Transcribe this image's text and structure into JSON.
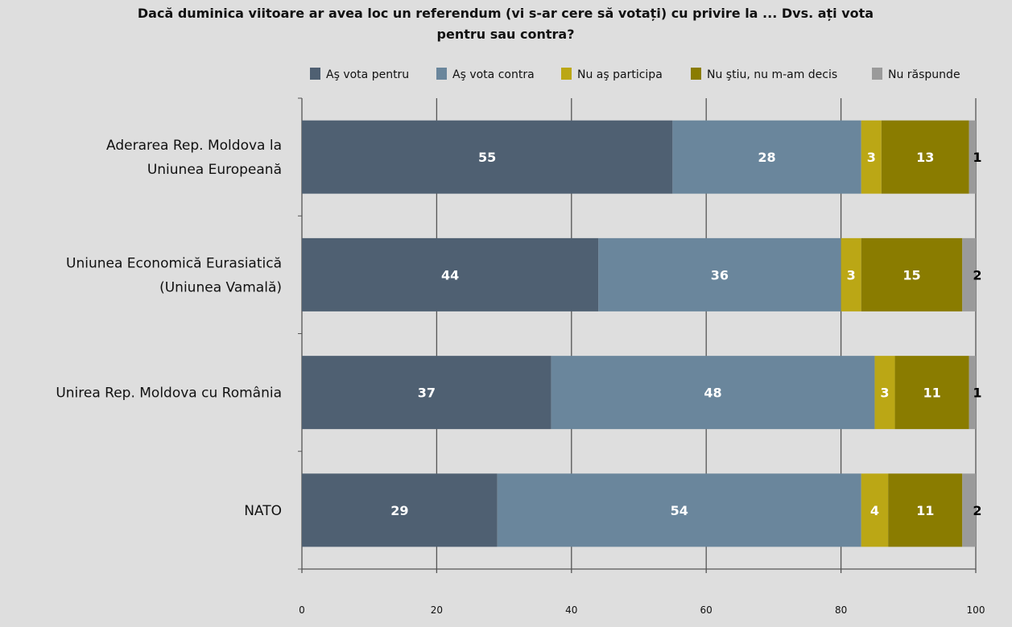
{
  "chart_data": {
    "type": "bar",
    "stacked": true,
    "orientation": "horizontal",
    "title_lines": [
      "Dacă duminica viitoare ar avea loc un referendum (vi s-ar cere să votați) cu privire la ... Dvs. ați vota",
      "pentru sau contra?"
    ],
    "categories": [
      [
        "Aderarea Rep. Moldova la",
        "Uniunea Europeană"
      ],
      [
        "Uniunea Economică Eurasiatică",
        "(Uniunea Vamală)"
      ],
      [
        "Unirea Rep. Moldova cu România"
      ],
      [
        "NATO"
      ]
    ],
    "series": [
      {
        "name": "Aş vota pentru",
        "color": "#4f6072",
        "label_color": "#ffffff",
        "values": [
          55,
          44,
          37,
          29
        ]
      },
      {
        "name": "Aş vota contra",
        "color": "#6a869c",
        "label_color": "#ffffff",
        "values": [
          28,
          36,
          48,
          54
        ]
      },
      {
        "name": "Nu aş participa",
        "color": "#bba715",
        "label_color": "#ffffff",
        "values": [
          3,
          3,
          3,
          4
        ]
      },
      {
        "name": "Nu ştiu, nu m-am decis",
        "color": "#8a7c00",
        "label_color": "#ffffff",
        "values": [
          13,
          15,
          11,
          11
        ]
      },
      {
        "name": "Nu răspunde",
        "color": "#9a9a9a",
        "label_color": "#000000",
        "values": [
          1,
          2,
          1,
          2
        ]
      }
    ],
    "xlim": [
      0,
      100
    ],
    "xticks": [
      "0",
      "20",
      "40",
      "60",
      "80",
      "100"
    ],
    "grid": true,
    "legend": "top"
  }
}
